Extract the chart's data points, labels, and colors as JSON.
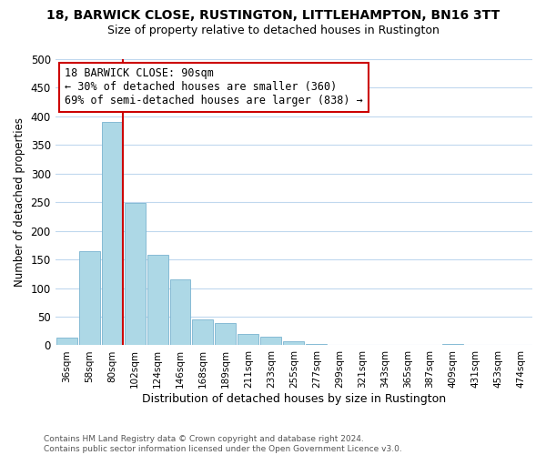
{
  "title": "18, BARWICK CLOSE, RUSTINGTON, LITTLEHAMPTON, BN16 3TT",
  "subtitle": "Size of property relative to detached houses in Rustington",
  "xlabel": "Distribution of detached houses by size in Rustington",
  "ylabel": "Number of detached properties",
  "bar_labels": [
    "36sqm",
    "58sqm",
    "80sqm",
    "102sqm",
    "124sqm",
    "146sqm",
    "168sqm",
    "189sqm",
    "211sqm",
    "233sqm",
    "255sqm",
    "277sqm",
    "299sqm",
    "321sqm",
    "343sqm",
    "365sqm",
    "387sqm",
    "409sqm",
    "431sqm",
    "453sqm",
    "474sqm"
  ],
  "bar_values": [
    14,
    165,
    390,
    248,
    158,
    115,
    45,
    39,
    20,
    15,
    7,
    2,
    1,
    0,
    0,
    0,
    0,
    3,
    1,
    0,
    1
  ],
  "bar_color": "#add8e6",
  "bar_edge_color": "#7ab4d0",
  "vline_color": "#cc0000",
  "annotation_text": "18 BARWICK CLOSE: 90sqm\n← 30% of detached houses are smaller (360)\n69% of semi-detached houses are larger (838) →",
  "ylim": [
    0,
    500
  ],
  "yticks": [
    0,
    50,
    100,
    150,
    200,
    250,
    300,
    350,
    400,
    450,
    500
  ],
  "footer_text": "Contains HM Land Registry data © Crown copyright and database right 2024.\nContains public sector information licensed under the Open Government Licence v3.0.",
  "bg_color": "#ffffff",
  "grid_color": "#c0d8ee"
}
